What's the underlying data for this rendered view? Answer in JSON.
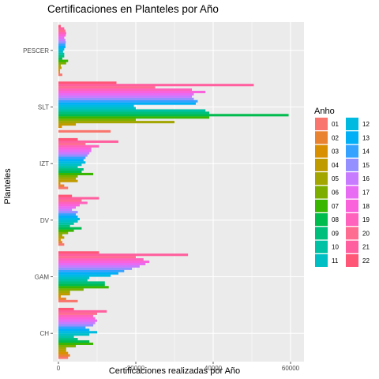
{
  "chart_data": {
    "type": "bar",
    "orientation": "horizontal",
    "title": "Certificaciones en Planteles por Año",
    "xlabel": "Certificaciones realizadas por Año",
    "ylabel": "Planteles",
    "xlim": [
      0,
      62000
    ],
    "xticks": [
      0,
      20000,
      40000,
      60000
    ],
    "xtick_labels": [
      "0",
      "20000",
      "40000",
      "60000"
    ],
    "categories": [
      "CH",
      "GAM",
      "DV",
      "IZT",
      "SLT",
      "PESCER"
    ],
    "legend_title": "Anho",
    "legend_position": "right",
    "series": [
      {
        "name": "01",
        "color": "#F8766D",
        "values": [
          2500,
          5000,
          1500,
          2500,
          13500,
          1000
        ]
      },
      {
        "name": "02",
        "color": "#EA8331",
        "values": [
          3000,
          2000,
          1000,
          1500,
          0,
          400
        ]
      },
      {
        "name": "03",
        "color": "#D89000",
        "values": [
          2500,
          600,
          600,
          500,
          900,
          400
        ]
      },
      {
        "name": "04",
        "color": "#C09B00",
        "values": [
          2000,
          3000,
          1500,
          5000,
          4500,
          800
        ]
      },
      {
        "name": "05",
        "color": "#A3A500",
        "values": [
          2000,
          3000,
          1000,
          4500,
          30000,
          600
        ]
      },
      {
        "name": "06",
        "color": "#7CAE00",
        "values": [
          4500,
          6500,
          2500,
          5000,
          20000,
          2000
        ]
      },
      {
        "name": "07",
        "color": "#39B600",
        "values": [
          9000,
          13000,
          4000,
          9000,
          39000,
          2500
        ]
      },
      {
        "name": "08",
        "color": "#00BB4E",
        "values": [
          8000,
          12000,
          6000,
          6000,
          59500,
          1000
        ]
      },
      {
        "name": "09",
        "color": "#00BF7D",
        "values": [
          5000,
          12000,
          3000,
          6500,
          39000,
          1500
        ]
      },
      {
        "name": "10",
        "color": "#00C1A3",
        "values": [
          4000,
          7500,
          4000,
          5000,
          38000,
          1500
        ]
      },
      {
        "name": "11",
        "color": "#00BFC4",
        "values": [
          8000,
          8000,
          5000,
          6000,
          20000,
          1200
        ]
      },
      {
        "name": "12",
        "color": "#00BAE0",
        "values": [
          10000,
          13500,
          5500,
          7000,
          19500,
          1500
        ]
      },
      {
        "name": "13",
        "color": "#00B0F6",
        "values": [
          8000,
          15500,
          5000,
          6500,
          35500,
          1800
        ]
      },
      {
        "name": "14",
        "color": "#35A2FF",
        "values": [
          7000,
          17000,
          4500,
          7000,
          36000,
          1800
        ]
      },
      {
        "name": "15",
        "color": "#9590FF",
        "values": [
          9000,
          19000,
          5000,
          7500,
          35000,
          1900
        ]
      },
      {
        "name": "16",
        "color": "#C77CFF",
        "values": [
          9500,
          21000,
          3500,
          8000,
          34500,
          1800
        ]
      },
      {
        "name": "17",
        "color": "#E76BF3",
        "values": [
          10000,
          22500,
          4500,
          8500,
          35000,
          1500
        ]
      },
      {
        "name": "18",
        "color": "#FA62DB",
        "values": [
          9500,
          23500,
          5500,
          8500,
          38000,
          1900
        ]
      },
      {
        "name": "19",
        "color": "#FF62BC",
        "values": [
          9000,
          22000,
          7500,
          10500,
          34500,
          2000
        ]
      },
      {
        "name": "20",
        "color": "#FF6C91",
        "values": [
          10000,
          20000,
          6000,
          7000,
          25000,
          1800
        ]
      },
      {
        "name": "21",
        "color": "#FF5F9E",
        "values": [
          12500,
          33500,
          10500,
          15500,
          50500,
          1500
        ]
      },
      {
        "name": "22",
        "color": "#FF5577",
        "values": [
          4000,
          10500,
          3500,
          5000,
          15000,
          600
        ]
      }
    ]
  }
}
